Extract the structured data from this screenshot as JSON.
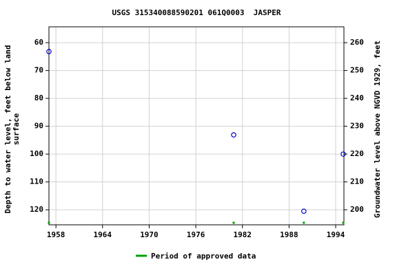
{
  "chart_data": {
    "type": "scatter",
    "title": "USGS 315340088590201 061Q0003  JASPER",
    "ylabel": [
      "Depth to water level, feet below land",
      "surface"
    ],
    "y2label": "Groundwater level above NGVD 1929, feet",
    "xlim": [
      1957.1,
      1995.06
    ],
    "xticks": [
      1958,
      1964,
      1970,
      1976,
      1982,
      1988,
      1994
    ],
    "ylim": [
      54.3,
      125.4
    ],
    "y_inverted": true,
    "yticks": [
      60,
      70,
      80,
      90,
      100,
      110,
      120
    ],
    "y2lim": [
      265.7,
      194.6
    ],
    "y2ticks": [
      200,
      210,
      220,
      230,
      240,
      250,
      260
    ],
    "grid": true,
    "series": [
      {
        "color": "#0000cc",
        "x": [
          1957.1,
          1980.87,
          1989.9,
          1994.97
        ],
        "values": [
          63.2,
          93.1,
          120.5,
          100
        ]
      }
    ],
    "approved": {
      "name": "Period of approved data",
      "color": "#00a000",
      "x": [
        1957.1,
        1980.87,
        1989.9,
        1994.97
      ]
    }
  }
}
